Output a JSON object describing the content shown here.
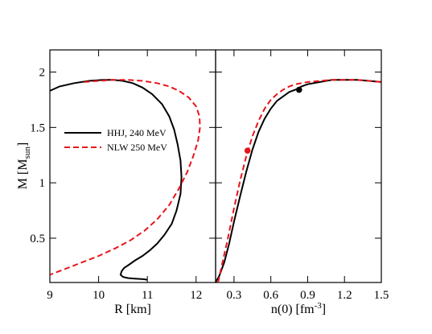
{
  "chart_data": [
    {
      "type": "line",
      "xlabel": "R [km]",
      "ylabel_main": "M [M",
      "ylabel_sub": "sun",
      "ylabel_tail": "]",
      "xlim": [
        9,
        12.4
      ],
      "ylim": [
        0.1,
        2.2
      ],
      "xticks": [
        9,
        10,
        11,
        12
      ],
      "yticks": [
        0.5,
        1,
        1.5,
        2
      ],
      "ytick_labels": [
        "0.5",
        "1",
        "1.5",
        "2"
      ],
      "legend_position": "upper-left",
      "series": [
        {
          "name": "HHJ,  240 MeV",
          "color": "#000000",
          "dash": "solid",
          "x": [
            9.0,
            9.2,
            9.5,
            9.8,
            10.1,
            10.3,
            10.5,
            10.7,
            10.9,
            11.1,
            11.3,
            11.45,
            11.55,
            11.62,
            11.68,
            11.7,
            11.68,
            11.6,
            11.5,
            11.35,
            11.2,
            11.05,
            10.9,
            10.75,
            10.62,
            10.52,
            10.47,
            10.45,
            10.5,
            10.6,
            10.75,
            10.92,
            11.0
          ],
          "y": [
            1.83,
            1.87,
            1.9,
            1.92,
            1.93,
            1.93,
            1.92,
            1.9,
            1.86,
            1.8,
            1.71,
            1.6,
            1.48,
            1.35,
            1.2,
            1.05,
            0.9,
            0.75,
            0.63,
            0.53,
            0.45,
            0.39,
            0.34,
            0.3,
            0.26,
            0.23,
            0.2,
            0.17,
            0.15,
            0.14,
            0.135,
            0.13,
            0.125
          ]
        },
        {
          "name": "NLW 250 MeV",
          "color": "#e8141a",
          "dash": "dashed",
          "x": [
            9.7,
            10.0,
            10.3,
            10.6,
            10.9,
            11.2,
            11.45,
            11.65,
            11.85,
            12.0,
            12.07,
            12.08,
            12.04,
            11.95,
            11.82,
            11.65,
            11.45,
            11.2,
            10.95,
            10.65,
            10.35,
            10.0,
            9.65,
            9.3,
            9.0
          ],
          "y": [
            1.91,
            1.92,
            1.93,
            1.93,
            1.92,
            1.9,
            1.87,
            1.83,
            1.77,
            1.69,
            1.6,
            1.5,
            1.38,
            1.25,
            1.1,
            0.95,
            0.8,
            0.67,
            0.57,
            0.48,
            0.41,
            0.34,
            0.28,
            0.22,
            0.17
          ]
        }
      ]
    },
    {
      "type": "line",
      "xlabel_main": "n(0) [fm",
      "xlabel_sup": "-3",
      "xlabel_tail": "]",
      "xlim": [
        0.15,
        1.5
      ],
      "ylim": [
        0.1,
        2.2
      ],
      "xticks": [
        0.3,
        0.6,
        0.9,
        1.2,
        1.5
      ],
      "xtick_labels": [
        "0.3",
        "0.6",
        "0.9",
        "1.2",
        "1.5"
      ],
      "yticks": [
        0.5,
        1,
        1.5,
        2
      ],
      "series": [
        {
          "name": "HHJ,  240 MeV",
          "color": "#000000",
          "dash": "solid",
          "x": [
            0.15,
            0.18,
            0.22,
            0.26,
            0.3,
            0.35,
            0.4,
            0.45,
            0.5,
            0.55,
            0.6,
            0.65,
            0.7,
            0.75,
            0.8,
            0.85,
            0.9,
            1.0,
            1.1,
            1.2,
            1.3,
            1.4,
            1.5
          ],
          "y": [
            0.1,
            0.16,
            0.28,
            0.45,
            0.65,
            0.88,
            1.1,
            1.3,
            1.46,
            1.58,
            1.67,
            1.74,
            1.78,
            1.82,
            1.84,
            1.87,
            1.89,
            1.91,
            1.93,
            1.93,
            1.93,
            1.92,
            1.91
          ]
        },
        {
          "name": "NLW 250 MeV",
          "color": "#e8141a",
          "dash": "dashed",
          "x": [
            0.17,
            0.2,
            0.25,
            0.3,
            0.35,
            0.4,
            0.45,
            0.5,
            0.55,
            0.6,
            0.65,
            0.7,
            0.75,
            0.8,
            0.85,
            0.9,
            1.0,
            1.1,
            1.2,
            1.3,
            1.4,
            1.5
          ],
          "y": [
            0.1,
            0.25,
            0.5,
            0.77,
            1.02,
            1.24,
            1.42,
            1.56,
            1.67,
            1.75,
            1.8,
            1.84,
            1.87,
            1.89,
            1.9,
            1.91,
            1.92,
            1.93,
            1.93,
            1.93,
            1.92,
            1.91
          ]
        }
      ],
      "markers": [
        {
          "series": "HHJ,  240 MeV",
          "color": "#000000",
          "x": 0.83,
          "y": 1.84
        },
        {
          "series": "NLW 250 MeV",
          "color": "#e8141a",
          "x": 0.41,
          "y": 1.29
        }
      ]
    }
  ]
}
